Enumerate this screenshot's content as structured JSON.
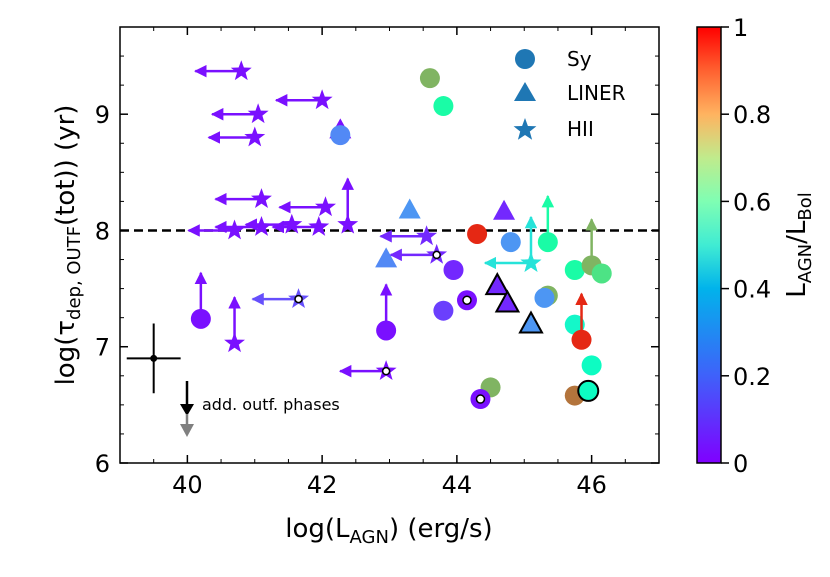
{
  "chart_data": {
    "type": "scatter",
    "xlabel_main": "log(L",
    "xlabel_sub": "AGN",
    "xlabel_tail": ") (erg/s)",
    "ylabel_main": "log(τ",
    "ylabel_sub": "dep, OUTF",
    "ylabel_tail": "(tot)) (yr)",
    "xlim": [
      39,
      47
    ],
    "ylim": [
      6,
      9.75
    ],
    "xticks": [
      "40",
      "42",
      "44",
      "46"
    ],
    "yticks": [
      "6",
      "7",
      "8",
      "9"
    ],
    "reference_line": {
      "y": 8.0,
      "style": "dashed"
    },
    "colorbar": {
      "label_main": "L",
      "label_sub1": "AGN",
      "label_mid": "/L",
      "label_sub2": "Bol",
      "range": [
        0,
        1
      ],
      "ticks": [
        "0",
        "0.2",
        "0.4",
        "0.6",
        "0.8",
        "1"
      ],
      "colormap": "rainbow"
    },
    "legend": [
      {
        "marker": "circle",
        "label": "Sy",
        "color": "#1f77b4"
      },
      {
        "marker": "triangle",
        "label": "LINER",
        "color": "#1f77b4"
      },
      {
        "marker": "star",
        "label": "HII",
        "color": "#1f77b4"
      }
    ],
    "annotation": "add. outf. phases",
    "error_bar": {
      "x": 39.5,
      "y": 6.9,
      "xerr": 0.4,
      "yerr": 0.3
    },
    "points": [
      {
        "x": 40.8,
        "y": 9.37,
        "m": "star",
        "c": 0.02,
        "arrow": "left"
      },
      {
        "x": 41.05,
        "y": 9.0,
        "m": "star",
        "c": 0.02,
        "arrow": "left"
      },
      {
        "x": 41.0,
        "y": 8.8,
        "m": "star",
        "c": 0.02,
        "arrow": "left"
      },
      {
        "x": 42.0,
        "y": 9.12,
        "m": "star",
        "c": 0.02,
        "arrow": "left"
      },
      {
        "x": 42.27,
        "y": 8.87,
        "m": "triangle",
        "c": 0.02
      },
      {
        "x": 42.27,
        "y": 8.82,
        "m": "circle",
        "c": 0.18
      },
      {
        "x": 41.1,
        "y": 8.27,
        "m": "star",
        "c": 0.02,
        "arrow": "left"
      },
      {
        "x": 40.7,
        "y": 8.0,
        "m": "star",
        "c": 0.02,
        "arrow": "left"
      },
      {
        "x": 41.1,
        "y": 8.03,
        "m": "star",
        "c": 0.02,
        "arrow": "left"
      },
      {
        "x": 41.55,
        "y": 8.05,
        "m": "star",
        "c": 0.02,
        "arrow": "left"
      },
      {
        "x": 42.05,
        "y": 8.2,
        "m": "star",
        "c": 0.02,
        "arrow": "left"
      },
      {
        "x": 41.95,
        "y": 8.03,
        "m": "star",
        "c": 0.02,
        "arrow": "left"
      },
      {
        "x": 42.38,
        "y": 8.05,
        "m": "star",
        "c": 0.02,
        "arrow": "up"
      },
      {
        "x": 40.2,
        "y": 7.24,
        "m": "circle",
        "c": 0.02,
        "arrow": "up"
      },
      {
        "x": 40.7,
        "y": 7.03,
        "m": "star",
        "c": 0.02,
        "arrow": "up"
      },
      {
        "x": 41.65,
        "y": 7.41,
        "m": "star",
        "c": 0.1,
        "arrow": "left",
        "ring": true
      },
      {
        "x": 42.95,
        "y": 7.14,
        "m": "circle",
        "c": 0.02,
        "arrow": "up"
      },
      {
        "x": 42.95,
        "y": 6.79,
        "m": "star",
        "c": 0.02,
        "arrow": "left",
        "ring": true
      },
      {
        "x": 43.3,
        "y": 8.18,
        "m": "triangle",
        "c": 0.2
      },
      {
        "x": 42.95,
        "y": 7.76,
        "m": "triangle",
        "c": 0.18
      },
      {
        "x": 43.55,
        "y": 7.95,
        "m": "star",
        "c": 0.05,
        "arrow": "left"
      },
      {
        "x": 43.7,
        "y": 7.79,
        "m": "star",
        "c": 0.05,
        "arrow": "left",
        "ring": true
      },
      {
        "x": 43.6,
        "y": 9.31,
        "m": "circle",
        "c": 0.75
      },
      {
        "x": 43.8,
        "y": 9.07,
        "m": "circle",
        "c": 0.55
      },
      {
        "x": 43.95,
        "y": 7.66,
        "m": "circle",
        "c": 0.05
      },
      {
        "x": 43.8,
        "y": 7.31,
        "m": "circle",
        "c": 0.08
      },
      {
        "x": 44.15,
        "y": 7.4,
        "m": "circle",
        "c": 0.02,
        "ring": true
      },
      {
        "x": 44.3,
        "y": 7.97,
        "m": "circle",
        "c": 0.95
      },
      {
        "x": 44.8,
        "y": 7.9,
        "m": "circle",
        "c": 0.2
      },
      {
        "x": 44.7,
        "y": 8.17,
        "m": "triangle",
        "c": 0.05
      },
      {
        "x": 44.6,
        "y": 7.53,
        "m": "triangle",
        "c": 0.05,
        "edge": true
      },
      {
        "x": 44.75,
        "y": 7.38,
        "m": "triangle",
        "c": 0.05,
        "edge": true
      },
      {
        "x": 45.1,
        "y": 7.2,
        "m": "triangle",
        "c": 0.2,
        "edge": true
      },
      {
        "x": 45.1,
        "y": 7.72,
        "m": "star",
        "c": 0.35,
        "arrow": "up"
      },
      {
        "x": 45.1,
        "y": 7.72,
        "m": "star",
        "c": 0.35,
        "arrow": "left"
      },
      {
        "x": 45.35,
        "y": 7.9,
        "m": "circle",
        "c": 0.55,
        "arrow": "up"
      },
      {
        "x": 45.35,
        "y": 7.44,
        "m": "circle",
        "c": 0.75
      },
      {
        "x": 45.3,
        "y": 7.42,
        "m": "circle",
        "c": 0.2
      },
      {
        "x": 44.5,
        "y": 6.65,
        "m": "circle",
        "c": 0.75
      },
      {
        "x": 44.35,
        "y": 6.55,
        "m": "circle",
        "c": 0.02,
        "ring": true
      },
      {
        "x": 45.75,
        "y": 7.66,
        "m": "circle",
        "c": 0.55
      },
      {
        "x": 46.0,
        "y": 7.7,
        "m": "circle",
        "c": 0.75,
        "arrow": "up"
      },
      {
        "x": 46.15,
        "y": 7.63,
        "m": "circle",
        "c": 0.65
      },
      {
        "x": 45.75,
        "y": 7.19,
        "m": "circle",
        "c": 0.42
      },
      {
        "x": 45.85,
        "y": 7.06,
        "m": "circle",
        "c": 0.95,
        "arrow": "up"
      },
      {
        "x": 46.0,
        "y": 6.84,
        "m": "circle",
        "c": 0.45
      },
      {
        "x": 45.75,
        "y": 6.58,
        "m": "circle",
        "c": 0.85
      },
      {
        "x": 45.95,
        "y": 6.62,
        "m": "circle",
        "c": 0.45,
        "edge": true
      }
    ]
  }
}
